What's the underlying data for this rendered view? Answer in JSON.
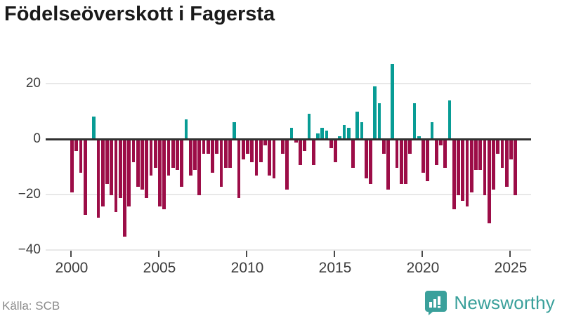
{
  "title": "Födelseöverskott i Fagersta",
  "source_label": "Källa: SCB",
  "branding": {
    "name": "Newsworthy",
    "logo_icon": "bar-chart-speech-bubble",
    "color": "#3aa09b"
  },
  "colors": {
    "positive_bar": "#089c95",
    "negative_bar": "#9c0d47",
    "zero_line": "#303030",
    "gridline": "#e8e8e8",
    "title_text": "#1a1a1a",
    "axis_text": "#3c3c3c",
    "source_text": "#8a8a8a"
  },
  "chart_data": {
    "type": "bar",
    "title": "Födelseöverskott i Fagersta",
    "xlabel": "",
    "ylabel": "",
    "frequency": "quarterly",
    "start_period": "2000 Q1",
    "end_period": "2025 Q2",
    "grid": "horizontal",
    "legend": "none",
    "ylim": [
      -40,
      30
    ],
    "yticks": [
      20,
      0,
      -20,
      -40
    ],
    "ytick_labels": [
      "20",
      "0",
      "−20",
      "−40"
    ],
    "xticks": [
      2000,
      2005,
      2010,
      2015,
      2020,
      2025
    ],
    "years": [
      {
        "year": 2000,
        "values": [
          -19,
          -4,
          -12,
          -27
        ]
      },
      {
        "year": 2001,
        "values": [
          0,
          8,
          -28,
          -24
        ]
      },
      {
        "year": 2002,
        "values": [
          -16,
          -20,
          -26,
          -21
        ]
      },
      {
        "year": 2003,
        "values": [
          -35,
          -24,
          -8,
          -17
        ]
      },
      {
        "year": 2004,
        "values": [
          -18,
          -21,
          -13,
          -10
        ]
      },
      {
        "year": 2005,
        "values": [
          -24,
          -25,
          -13,
          -10
        ]
      },
      {
        "year": 2006,
        "values": [
          -11,
          -17,
          7,
          -13
        ]
      },
      {
        "year": 2007,
        "values": [
          -11,
          -20,
          -5,
          -5
        ]
      },
      {
        "year": 2008,
        "values": [
          -12,
          -5,
          -17,
          -10
        ]
      },
      {
        "year": 2009,
        "values": [
          -10,
          6,
          -21,
          -7
        ]
      },
      {
        "year": 2010,
        "values": [
          -5,
          -8,
          -13,
          -8
        ]
      },
      {
        "year": 2011,
        "values": [
          -2,
          -13,
          -14,
          0
        ]
      },
      {
        "year": 2012,
        "values": [
          -5,
          -18,
          4,
          -1
        ]
      },
      {
        "year": 2013,
        "values": [
          -9,
          -4,
          9,
          -9
        ]
      },
      {
        "year": 2014,
        "values": [
          2,
          4,
          3,
          -3
        ]
      },
      {
        "year": 2015,
        "values": [
          -8,
          1,
          5,
          4
        ]
      },
      {
        "year": 2016,
        "values": [
          -10,
          10,
          6,
          -14
        ]
      },
      {
        "year": 2017,
        "values": [
          -16,
          19,
          13,
          -5
        ]
      },
      {
        "year": 2018,
        "values": [
          -18,
          27,
          -10,
          -16
        ]
      },
      {
        "year": 2019,
        "values": [
          -16,
          -5,
          13,
          1
        ]
      },
      {
        "year": 2020,
        "values": [
          -12,
          -15,
          6,
          -9
        ]
      },
      {
        "year": 2021,
        "values": [
          -2,
          -10,
          14,
          -25
        ]
      },
      {
        "year": 2022,
        "values": [
          -20,
          -22,
          -24,
          -19
        ]
      },
      {
        "year": 2023,
        "values": [
          -11,
          -11,
          -20,
          -30
        ]
      },
      {
        "year": 2024,
        "values": [
          -18,
          -5,
          -10,
          -17
        ]
      },
      {
        "year": 2025,
        "values": [
          -7,
          -20
        ]
      }
    ]
  }
}
